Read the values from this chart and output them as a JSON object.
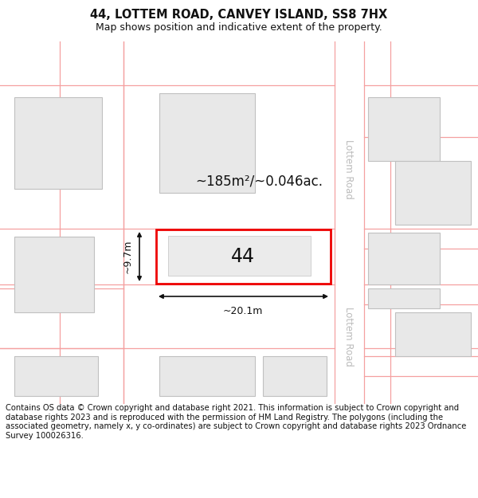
{
  "title": "44, LOTTEM ROAD, CANVEY ISLAND, SS8 7HX",
  "subtitle": "Map shows position and indicative extent of the property.",
  "footer": "Contains OS data © Crown copyright and database right 2021. This information is subject to Crown copyright and database rights 2023 and is reproduced with the permission of HM Land Registry. The polygons (including the associated geometry, namely x, y co-ordinates) are subject to Crown copyright and database rights 2023 Ordnance Survey 100026316.",
  "bg_color": "#ffffff",
  "map_bg": "#ffffff",
  "block_color": "#e8e8e8",
  "block_edge": "#c0c0c0",
  "road_line_color": "#f5a0a0",
  "highlight_color": "#ee0000",
  "road_label_color": "#bbbbbb",
  "dim_color": "#111111",
  "label_44": "44",
  "area_label": "~185m²/~0.046ac.",
  "dim_width": "~20.1m",
  "dim_height": "~9.7m",
  "title_fontsize": 10.5,
  "subtitle_fontsize": 9.0,
  "footer_fontsize": 7.2,
  "road_label_fontsize": 8.5,
  "map_label_fontsize": 17,
  "area_fontsize": 12
}
